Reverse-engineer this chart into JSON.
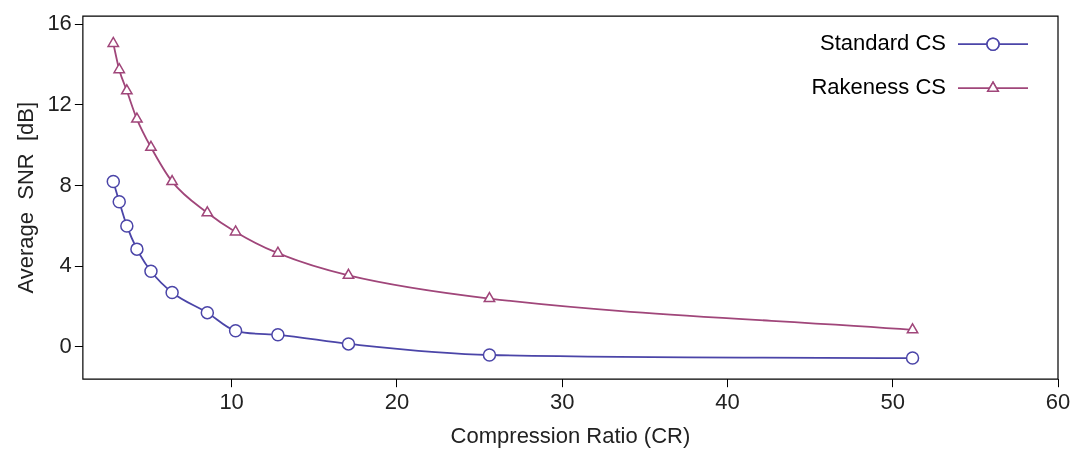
{
  "chart_data": {
    "type": "line",
    "xlabel": "Compression Ratio (CR)",
    "ylabel": "Average  SNR  [dB]",
    "xlim": [
      1,
      60
    ],
    "xticks": [
      10,
      20,
      30,
      40,
      50,
      60
    ],
    "ylim": [
      -1.6,
      16.4
    ],
    "yticks": [
      0,
      4,
      8,
      12,
      16
    ],
    "grid": false,
    "legend": "top right",
    "line_style": "solid",
    "series": [
      {
        "name": "Standard CS",
        "color": "#4b45a8",
        "marker": "circle",
        "x": [
          2.84,
          3.2,
          3.66,
          4.27,
          5.12,
          6.4,
          8.53,
          10.24,
          12.8,
          17.07,
          25.6,
          51.2
        ],
        "values": [
          8.2,
          7.2,
          6.0,
          4.85,
          3.75,
          2.7,
          1.7,
          0.8,
          0.6,
          0.15,
          -0.4,
          -0.55
        ]
      },
      {
        "name": "Rakeness CS",
        "color": "#a0467a",
        "marker": "triangle",
        "x": [
          2.84,
          3.2,
          3.66,
          4.27,
          5.12,
          6.4,
          8.53,
          10.24,
          12.8,
          17.07,
          25.6,
          51.2
        ],
        "values": [
          15.05,
          13.75,
          12.7,
          11.3,
          9.9,
          8.2,
          6.65,
          5.7,
          4.65,
          3.55,
          2.4,
          0.85
        ]
      }
    ]
  }
}
